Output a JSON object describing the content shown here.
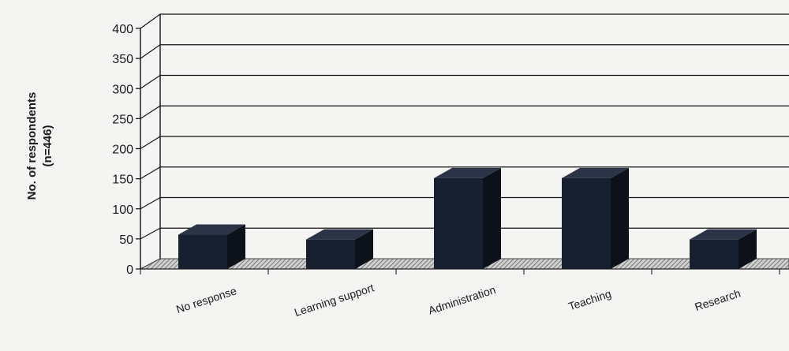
{
  "chart_data": {
    "type": "bar",
    "title": "",
    "xlabel": "",
    "ylabel": "No. of respondents",
    "ylabel_sub": "(n=446)",
    "categories": [
      "No response",
      "Learning support",
      "Administration",
      "Teaching",
      "Research"
    ],
    "values": [
      57,
      49,
      151,
      151,
      49
    ],
    "ylim": [
      0,
      400
    ],
    "yticks": [
      0,
      50,
      100,
      150,
      200,
      250,
      300,
      350,
      400
    ],
    "grid": true,
    "style": "3d",
    "colors": {
      "bar_front": "#17202e",
      "bar_side": "#0c111a",
      "bar_top": "#2a3446",
      "grid": "#111111",
      "floor": "#8a8a8a"
    }
  }
}
